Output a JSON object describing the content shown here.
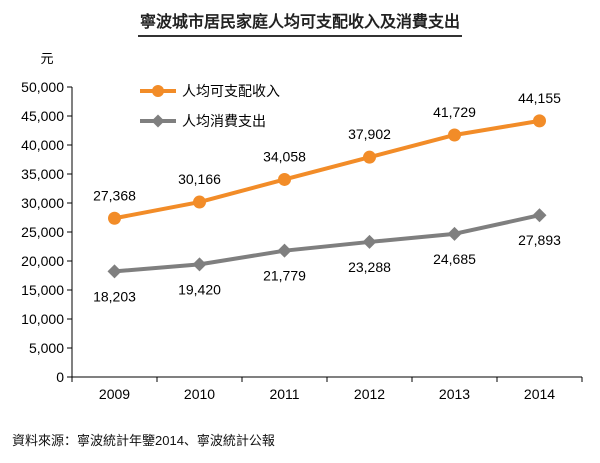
{
  "chart_data": {
    "type": "line",
    "title": "寧波城市居民家庭人均可支配收入及消費支出",
    "ylabel": "元",
    "xlabel": "",
    "categories": [
      "2009",
      "2010",
      "2011",
      "2012",
      "2013",
      "2014"
    ],
    "ylim": [
      0,
      50000
    ],
    "yticks": [
      0,
      5000,
      10000,
      15000,
      20000,
      25000,
      30000,
      35000,
      40000,
      45000,
      50000
    ],
    "ytick_labels": [
      "0",
      "5,000",
      "10,000",
      "15,000",
      "20,000",
      "25,000",
      "30,000",
      "35,000",
      "40,000",
      "45,000",
      "50,000"
    ],
    "legend_position": "top-left",
    "grid": false,
    "series": [
      {
        "name": "人均可支配收入",
        "values": [
          27368,
          30166,
          34058,
          37902,
          41729,
          44155
        ],
        "labels": [
          "27,368",
          "30,166",
          "34,058",
          "37,902",
          "41,729",
          "44,155"
        ],
        "label_position": "above",
        "marker": "circle",
        "color": "#F28C28"
      },
      {
        "name": "人均消費支出",
        "values": [
          18203,
          19420,
          21779,
          23288,
          24685,
          27893
        ],
        "labels": [
          "18,203",
          "19,420",
          "21,779",
          "23,288",
          "24,685",
          "27,893"
        ],
        "label_position": "below",
        "marker": "diamond",
        "color": "#7F7F7F"
      }
    ]
  },
  "source_text": "資料來源：寧波統計年鑒2014、寧波統計公報"
}
